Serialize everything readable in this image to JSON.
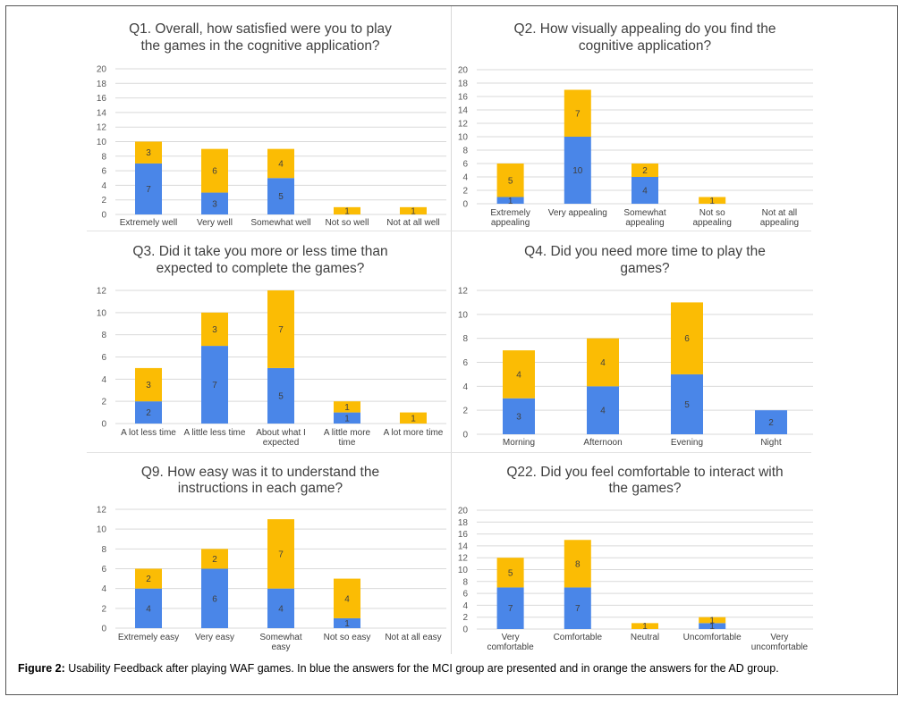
{
  "caption": {
    "label": "Figure 2:",
    "text": " Usability Feedback after playing WAF games. In blue the answers for the MCI group are presented and in orange the answers for the AD group."
  },
  "colors": {
    "mci": "#4a86e8",
    "ad": "#fbbc04",
    "grid": "#d9d9d9"
  },
  "chart_data": [
    {
      "type": "bar",
      "stacked": true,
      "title": [
        "Q1. Overall, how satisfied were you to play",
        "the games in the cognitive application?"
      ],
      "categories": [
        [
          "Extremely well"
        ],
        [
          "Very well"
        ],
        [
          "Somewhat well"
        ],
        [
          "Not so well"
        ],
        [
          "Not at all well"
        ]
      ],
      "series": [
        {
          "key": "mci",
          "values": [
            7,
            3,
            5,
            0,
            0
          ]
        },
        {
          "key": "ad",
          "values": [
            3,
            6,
            4,
            1,
            1
          ]
        }
      ],
      "ylim": [
        0,
        20
      ],
      "yticks": [
        0,
        2,
        4,
        6,
        8,
        10,
        12,
        14,
        16,
        18,
        20
      ],
      "grid": true
    },
    {
      "type": "bar",
      "stacked": true,
      "title": [
        "Q2. How visually appealing do you find the",
        "cognitive application?"
      ],
      "categories": [
        [
          "Extremely",
          "appealing"
        ],
        [
          "Very appealing"
        ],
        [
          "Somewhat",
          "appealing"
        ],
        [
          "Not so",
          "appealing"
        ],
        [
          "Not at all",
          "appealing"
        ]
      ],
      "series": [
        {
          "key": "mci",
          "values": [
            1,
            10,
            4,
            0,
            0
          ]
        },
        {
          "key": "ad",
          "values": [
            5,
            7,
            2,
            1,
            0
          ]
        }
      ],
      "ylim": [
        0,
        20
      ],
      "yticks": [
        0,
        2,
        4,
        6,
        8,
        10,
        12,
        14,
        16,
        18,
        20
      ],
      "grid": true
    },
    {
      "type": "bar",
      "stacked": true,
      "title": [
        "Q3. Did it take you more or less time than",
        "expected to complete the games?"
      ],
      "categories": [
        [
          "A lot less time"
        ],
        [
          "A little less time"
        ],
        [
          "About what I",
          "expected"
        ],
        [
          "A little more",
          "time"
        ],
        [
          "A lot more time"
        ]
      ],
      "series": [
        {
          "key": "mci",
          "values": [
            2,
            7,
            5,
            1,
            0
          ]
        },
        {
          "key": "ad",
          "values": [
            3,
            3,
            7,
            1,
            1
          ]
        }
      ],
      "ylim": [
        0,
        12
      ],
      "yticks": [
        0,
        2,
        4,
        6,
        8,
        10,
        12
      ],
      "grid": true
    },
    {
      "type": "bar",
      "stacked": true,
      "title": [
        "Q4. Did you need more time to play the",
        "games?"
      ],
      "categories": [
        [
          "Morning"
        ],
        [
          "Afternoon"
        ],
        [
          "Evening"
        ],
        [
          "Night"
        ]
      ],
      "series": [
        {
          "key": "mci",
          "values": [
            3,
            4,
            5,
            2
          ]
        },
        {
          "key": "ad",
          "values": [
            4,
            4,
            6,
            0
          ]
        }
      ],
      "ylim": [
        0,
        12
      ],
      "yticks": [
        0,
        2,
        4,
        6,
        8,
        10,
        12
      ],
      "grid": true
    },
    {
      "type": "bar",
      "stacked": true,
      "title": [
        "Q9. How easy was it to understand the",
        "instructions in each game?"
      ],
      "categories": [
        [
          "Extremely easy"
        ],
        [
          "Very easy"
        ],
        [
          "Somewhat",
          "easy"
        ],
        [
          "Not so easy"
        ],
        [
          "Not at all easy"
        ]
      ],
      "series": [
        {
          "key": "mci",
          "values": [
            4,
            6,
            4,
            1,
            0
          ]
        },
        {
          "key": "ad",
          "values": [
            2,
            2,
            7,
            4,
            0
          ]
        }
      ],
      "ylim": [
        0,
        12
      ],
      "yticks": [
        0,
        2,
        4,
        6,
        8,
        10,
        12
      ],
      "grid": true
    },
    {
      "type": "bar",
      "stacked": true,
      "title": [
        "Q22. Did you feel comfortable to interact with",
        "the games?"
      ],
      "categories": [
        [
          "Very",
          "comfortable"
        ],
        [
          "Comfortable"
        ],
        [
          "Neutral"
        ],
        [
          "Uncomfortable"
        ],
        [
          "Very",
          "uncomfortable"
        ]
      ],
      "series": [
        {
          "key": "mci",
          "values": [
            7,
            7,
            0,
            1,
            0
          ]
        },
        {
          "key": "ad",
          "values": [
            5,
            8,
            1,
            1,
            0
          ]
        }
      ],
      "ylim": [
        0,
        20
      ],
      "yticks": [
        0,
        2,
        4,
        6,
        8,
        10,
        12,
        14,
        16,
        18,
        20
      ],
      "grid": true
    }
  ]
}
